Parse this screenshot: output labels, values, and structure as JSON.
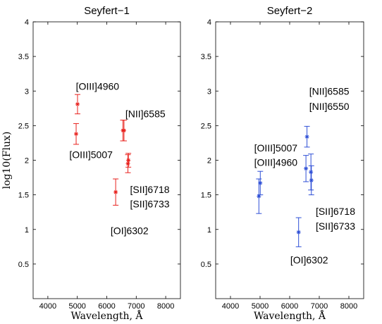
{
  "chart_data": [
    {
      "type": "scatter",
      "title": "Seyfert−1",
      "xlabel": "Wavelength, Å",
      "ylabel": "log10(Flux)",
      "xlim": [
        3500,
        8500
      ],
      "ylim": [
        0,
        4
      ],
      "xticks": [
        4000,
        5000,
        6000,
        7000,
        8000
      ],
      "yticks": [
        0.5,
        1,
        1.5,
        2,
        2.5,
        3,
        3.5,
        4
      ],
      "xtick_labels": [
        "4000",
        "5000",
        "6000",
        "7000",
        "8000"
      ],
      "ytick_labels": [
        "0.5",
        "1",
        "1.5",
        "2",
        "2.5",
        "3",
        "3.5",
        "4"
      ],
      "grid": false,
      "color": "#e8201c",
      "points": [
        {
          "x": 4960,
          "y": 2.38,
          "err": 0.15
        },
        {
          "x": 5007,
          "y": 2.81,
          "err": 0.14
        },
        {
          "x": 6302,
          "y": 1.54,
          "err": 0.19
        },
        {
          "x": 6550,
          "y": 2.43,
          "err": 0.15
        },
        {
          "x": 6585,
          "y": 2.43,
          "err": 0.15
        },
        {
          "x": 6718,
          "y": 1.95,
          "err": 0.13
        },
        {
          "x": 6733,
          "y": 2.0,
          "err": 0.1
        }
      ],
      "annotations": [
        {
          "text": "[OIII]4960",
          "x": 4950,
          "y": 3.07
        },
        {
          "text": "[OIII]5007",
          "x": 4730,
          "y": 2.08
        },
        {
          "text": "[NII]6585",
          "x": 6630,
          "y": 2.67
        },
        {
          "text": "[SII]6718",
          "x": 6790,
          "y": 1.58
        },
        {
          "text": "[SII]6733",
          "x": 6790,
          "y": 1.37
        },
        {
          "text": "[OI]6302",
          "x": 6130,
          "y": 0.98
        }
      ]
    },
    {
      "type": "scatter",
      "title": "Seyfert−2",
      "xlabel": "Wavelength, Å",
      "ylabel": "",
      "xlim": [
        3500,
        8500
      ],
      "ylim": [
        0,
        4
      ],
      "xticks": [
        4000,
        5000,
        6000,
        7000,
        8000
      ],
      "yticks": [
        0.5,
        1,
        1.5,
        2,
        2.5,
        3,
        3.5,
        4
      ],
      "xtick_labels": [
        "4000",
        "5000",
        "6000",
        "7000",
        "8000"
      ],
      "ytick_labels": [
        "0.5",
        "1",
        "1.5",
        "2",
        "2.5",
        "3",
        "3.5",
        "4"
      ],
      "grid": false,
      "color": "#2e4fd6",
      "points": [
        {
          "x": 4960,
          "y": 1.48,
          "err": 0.25
        },
        {
          "x": 5007,
          "y": 1.67,
          "err": 0.17
        },
        {
          "x": 6302,
          "y": 0.96,
          "err": 0.21
        },
        {
          "x": 6550,
          "y": 1.88,
          "err": 0.19
        },
        {
          "x": 6585,
          "y": 2.34,
          "err": 0.15
        },
        {
          "x": 6718,
          "y": 1.83,
          "err": 0.26
        },
        {
          "x": 6733,
          "y": 1.71,
          "err": 0.21
        }
      ],
      "annotations": [
        {
          "text": "[NII]6585",
          "x": 6660,
          "y": 3.0
        },
        {
          "text": "[NII]6550",
          "x": 6660,
          "y": 2.78
        },
        {
          "text": "[OIII]5007",
          "x": 4800,
          "y": 2.18
        },
        {
          "text": "[OIII]4960",
          "x": 4800,
          "y": 1.97
        },
        {
          "text": "[SII]6718",
          "x": 6880,
          "y": 1.26
        },
        {
          "text": "[SII]6733",
          "x": 6880,
          "y": 1.05
        },
        {
          "text": "[OI]6302",
          "x": 6020,
          "y": 0.56
        }
      ]
    }
  ]
}
